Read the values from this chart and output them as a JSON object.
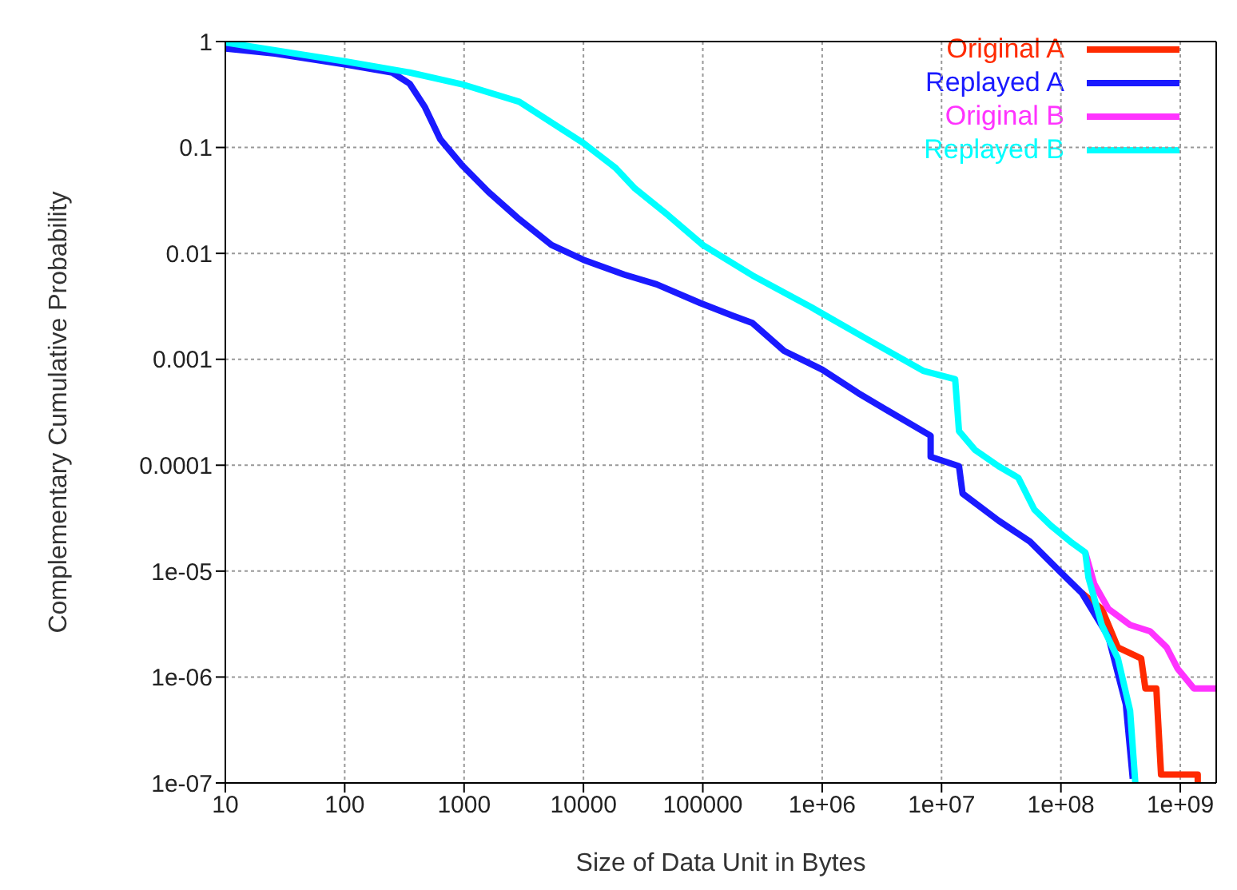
{
  "chart_data": {
    "type": "line",
    "xlabel": "Size of Data Unit in Bytes",
    "ylabel": "Complementary Cumulative Probability",
    "log": "xy",
    "grid": true,
    "legend": "top right",
    "marker": "none",
    "line_style": "solid",
    "xlim": [
      10,
      2000000000
    ],
    "ylim": [
      1e-07,
      1
    ],
    "xticks": [
      10,
      100,
      1000,
      10000,
      100000,
      {
        "value": 1000000,
        "label": "1e+06"
      },
      {
        "value": 10000000,
        "label": "1e+07"
      },
      {
        "value": 100000000,
        "label": "1e+08"
      },
      {
        "value": 1000000000,
        "label": "1e+09"
      }
    ],
    "yticks": [
      {
        "value": 1e-07,
        "label": "1e-07"
      },
      {
        "value": 1e-06,
        "label": "1e-06"
      },
      {
        "value": 1e-05,
        "label": "1e-05"
      },
      0.0001,
      0.001,
      0.01,
      0.1,
      1
    ],
    "series": [
      {
        "name": "Original A",
        "color": "#ff2a00",
        "x": [
          150000000,
          220000000,
          300000000,
          470000000,
          510000000,
          630000000,
          690000000,
          1400000000,
          1400000000
        ],
        "values": [
          6.2e-06,
          4.4e-06,
          1.9e-06,
          1.5e-06,
          7.8e-07,
          7.8e-07,
          1.2e-07,
          1.2e-07,
          1e-07
        ]
      },
      {
        "name": "Replayed A",
        "color": "#1a1aff",
        "x": [
          10,
          26,
          100,
          250,
          350,
          470,
          630,
          950,
          1600,
          2900,
          5400,
          10000,
          22000,
          41000,
          95000,
          175000,
          260000,
          480000,
          1000000,
          2000000,
          3500000,
          8100000,
          8100000,
          14000000,
          15000000,
          30000000,
          55000000,
          100000000,
          150000000,
          250000000,
          350000000,
          400000000
        ],
        "values": [
          0.86,
          0.77,
          0.61,
          0.51,
          0.4,
          0.24,
          0.12,
          0.069,
          0.038,
          0.021,
          0.012,
          0.0087,
          0.0063,
          0.0051,
          0.0034,
          0.0026,
          0.0022,
          0.0012,
          0.0008,
          0.00048,
          0.00033,
          0.00019,
          0.00012,
          9.8e-05,
          5.4e-05,
          3e-05,
          1.9e-05,
          9.7e-06,
          6.2e-06,
          2.4e-06,
          5.5e-07,
          1.1e-07
        ]
      },
      {
        "name": "Original B",
        "color": "#ff33ff",
        "x": [
          160000000,
          190000000,
          250000000,
          380000000,
          560000000,
          770000000,
          950000000,
          1300000000,
          2000000000
        ],
        "values": [
          1.5e-05,
          7.6e-06,
          4.4e-06,
          3.1e-06,
          2.7e-06,
          1.9e-06,
          1.2e-06,
          7.8e-07,
          7.8e-07
        ]
      },
      {
        "name": "Replayed B",
        "color": "#00ffff",
        "x": [
          10,
          100,
          350,
          1000,
          2900,
          10000,
          18600,
          27000,
          51000,
          100000,
          260000,
          810000,
          2500000,
          7000000,
          13000000,
          14000000,
          19000000,
          30000000,
          44000000,
          60000000,
          82000000,
          120000000,
          160000000,
          170000000,
          220000000,
          300000000,
          380000000,
          420000000
        ],
        "values": [
          0.98,
          0.65,
          0.51,
          0.39,
          0.27,
          0.11,
          0.064,
          0.041,
          0.023,
          0.012,
          0.0062,
          0.0031,
          0.0015,
          0.00078,
          0.00065,
          0.00021,
          0.00014,
          9.8e-05,
          7.6e-05,
          3.8e-05,
          2.7e-05,
          1.9e-05,
          1.5e-05,
          8.7e-06,
          3.1e-06,
          1.5e-06,
          4.8e-07,
          1e-07
        ]
      }
    ]
  }
}
